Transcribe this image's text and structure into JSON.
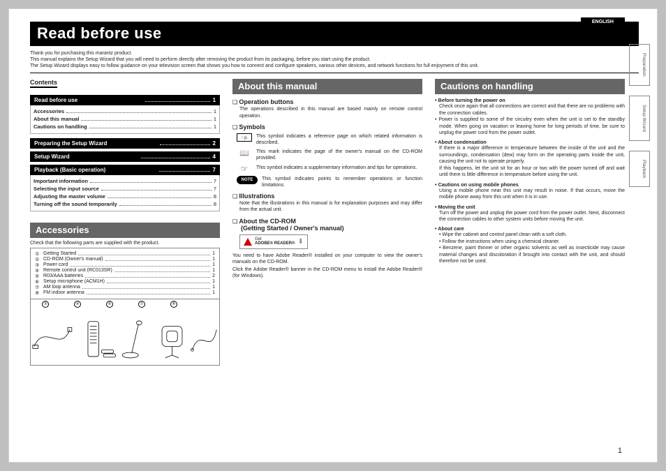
{
  "lang": "ENGLISH",
  "side_tabs": [
    "Preparation",
    "Setup Wizard",
    "Playback"
  ],
  "title": "Read before use",
  "intro": [
    "Thank you for purchasing this marantz product.",
    "This manual explains the Setup Wizard that you will need to perform directly after removing the product from its packaging, before you start using the product.",
    "The Setup Wizard displays easy to follow guidance on your television screen that shows you how to connect and configure speakers, various other devices, and network functions for full enjoyment of this unit."
  ],
  "contents_label": "Contents",
  "toc": [
    {
      "head": "Read before use",
      "page": "1",
      "subs": [
        {
          "label": "Accessories",
          "page": "1"
        },
        {
          "label": "About this manual",
          "page": "1"
        },
        {
          "label": "Cautions on handling",
          "page": "1"
        }
      ]
    },
    {
      "head": "Preparing the Setup Wizard",
      "page": "2",
      "subs": []
    },
    {
      "head": "Setup Wizard",
      "page": "4",
      "subs": []
    },
    {
      "head": "Playback (Basic operation)",
      "page": "7",
      "subs": [
        {
          "label": "Important information",
          "page": "7"
        },
        {
          "label": "Selecting the input source",
          "page": "7"
        },
        {
          "label": "Adjusting the master volume",
          "page": "8"
        },
        {
          "label": "Turning off the sound temporarily",
          "page": "8"
        }
      ]
    }
  ],
  "accessories": {
    "title": "Accessories",
    "lead": "Check that the following parts are supplied with the product.",
    "items": [
      {
        "n": "①",
        "label": "Getting Started",
        "q": "1"
      },
      {
        "n": "②",
        "label": "CD-ROM (Owner's manual)",
        "q": "1"
      },
      {
        "n": "③",
        "label": "Power cord",
        "q": "1"
      },
      {
        "n": "④",
        "label": "Remote control unit (RC013SR)",
        "q": "1"
      },
      {
        "n": "⑤",
        "label": "R03/AAA batteries",
        "q": "2"
      },
      {
        "n": "⑥",
        "label": "Setup microphone (ACM1H)",
        "q": "1"
      },
      {
        "n": "⑦",
        "label": "AM loop antenna",
        "q": "1"
      },
      {
        "n": "⑧",
        "label": "FM indoor antenna",
        "q": "1"
      }
    ],
    "img_labels": [
      "③",
      "④",
      "⑥",
      "⑦",
      "⑧"
    ]
  },
  "about": {
    "title": "About this manual",
    "op_buttons": {
      "h": "Operation buttons",
      "t": "The operations described in this manual are based mainly on remote control operation."
    },
    "symbols": {
      "h": "Symbols",
      "rows": [
        {
          "icon": "page",
          "t": "This symbol indicates a reference page on which related information is described."
        },
        {
          "icon": "book",
          "t": "This mark indicates the page of the owner's manual on the CD-ROM provided."
        },
        {
          "icon": "hand",
          "t": "This symbol indicates a supplementary information and tips for operations."
        },
        {
          "icon": "note",
          "t": "This symbol indicates points to remember operations or function limitations."
        }
      ]
    },
    "illus": {
      "h": "Illustrations",
      "t": "Note that the illustrations in this manual is for explanation purposes and may differ from the actual unit."
    },
    "cdrom": {
      "h": "About the CD-ROM",
      "h2": "(Getting Started / Owner's manual)",
      "adobe": "ADOBE® READER®",
      "adobe_pre": "Get",
      "t1": "You need to have Adobe Reader® installed on your computer to view the owner's manuals on the CD-ROM.",
      "t2": "Click the Adobe Reader® banner in the CD-ROM menu to install the Adobe Reader® (for Windows)."
    }
  },
  "cautions": {
    "title": "Cautions on handling",
    "sections": [
      {
        "h": "Before turning the power on",
        "paras": [
          "Check once again that all connections are correct and that there are no problems with the connection cables."
        ],
        "extra": [
          "Power is supplied to some of the circuitry even when the unit is set to the standby mode. When going on vacation or leaving home for long periods of time, be sure to unplug the power cord from the power outlet."
        ]
      },
      {
        "h": "About condensation",
        "paras": [
          "If there is a major difference in temperature between the inside of the unit and the surroundings, condensation (dew) may form on the operating parts inside the unit, causing the unit not to operate properly.",
          "If this happens, let the unit sit for an hour or two with the power turned off and wait until there is little difference in temperature before using the unit."
        ]
      },
      {
        "h": "Cautions on using mobile phones",
        "paras": [
          "Using a mobile phone near this unit may result in noise. If that occurs, move the mobile phone away from this unit when it is in use."
        ]
      },
      {
        "h": "Moving the unit",
        "paras": [
          "Turn off the power and unplug the power cord from the power outlet. Next, disconnect the connection cables to other system units before moving the unit."
        ]
      },
      {
        "h": "About care",
        "list": [
          "Wipe the cabinet and control panel clean with a soft cloth.",
          "Follow the instructions when using a chemical cleaner.",
          "Benzene, paint thinner or other organic solvents as well as insecticide may cause material changes and discoloration if brought into contact with the unit, and should therefore not be used."
        ]
      }
    ]
  },
  "pagenum": "1"
}
